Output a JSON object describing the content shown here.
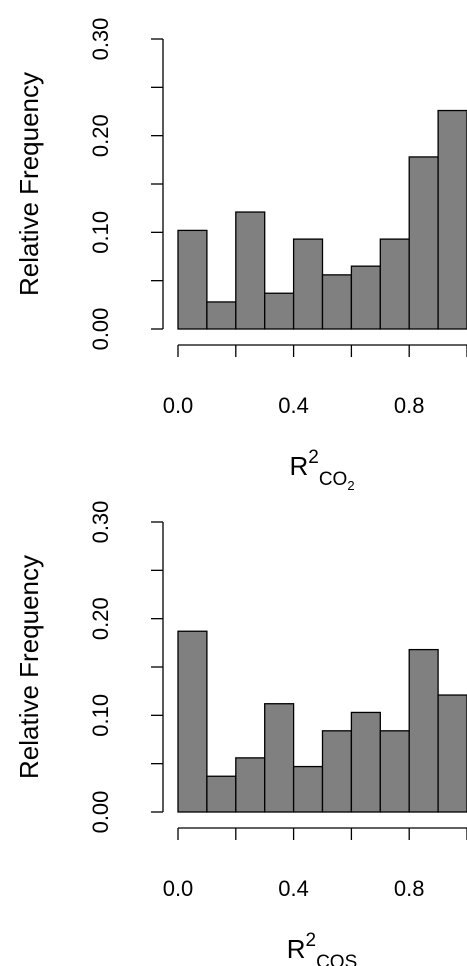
{
  "chart_data": [
    {
      "type": "histogram",
      "ylabel": "Relative Frequency",
      "xlabel": {
        "main": "R",
        "sup": "2",
        "sub": "CO",
        "sub_sub": "2"
      },
      "bins": [
        0,
        0.1,
        0.2,
        0.3,
        0.4,
        0.5,
        0.6,
        0.7,
        0.8,
        0.9,
        1.0
      ],
      "values": [
        0.102,
        0.028,
        0.121,
        0.037,
        0.093,
        0.056,
        0.065,
        0.093,
        0.178,
        0.226
      ],
      "color": "#808080",
      "xlim": [
        0,
        1
      ],
      "ylim": [
        0,
        0.3
      ],
      "xticks": [
        {
          "value": 0,
          "label": "0.0"
        },
        {
          "value": 0.2,
          "label": null
        },
        {
          "value": 0.4,
          "label": "0.4"
        },
        {
          "value": 0.6,
          "label": null
        },
        {
          "value": 0.8,
          "label": "0.8"
        },
        {
          "value": 1.0,
          "label": null
        }
      ],
      "yticks": [
        {
          "value": 0,
          "label": "0.00"
        },
        {
          "value": 0.05,
          "label": null
        },
        {
          "value": 0.1,
          "label": "0.10"
        },
        {
          "value": 0.15,
          "label": null
        },
        {
          "value": 0.2,
          "label": "0.20"
        },
        {
          "value": 0.25,
          "label": null
        },
        {
          "value": 0.3,
          "label": "0.30"
        }
      ]
    },
    {
      "type": "histogram",
      "ylabel": "Relative Frequency",
      "xlabel": {
        "main": "R",
        "sup": "2",
        "sub": "COS"
      },
      "bins": [
        0,
        0.1,
        0.2,
        0.3,
        0.4,
        0.5,
        0.6,
        0.7,
        0.8,
        0.9,
        1.0
      ],
      "values": [
        0.187,
        0.037,
        0.056,
        0.112,
        0.047,
        0.084,
        0.103,
        0.084,
        0.168,
        0.121
      ],
      "color": "#808080",
      "xlim": [
        0,
        1
      ],
      "ylim": [
        0,
        0.3
      ],
      "xticks": [
        {
          "value": 0,
          "label": "0.0"
        },
        {
          "value": 0.2,
          "label": null
        },
        {
          "value": 0.4,
          "label": "0.4"
        },
        {
          "value": 0.6,
          "label": null
        },
        {
          "value": 0.8,
          "label": "0.8"
        },
        {
          "value": 1.0,
          "label": null
        }
      ],
      "yticks": [
        {
          "value": 0,
          "label": "0.00"
        },
        {
          "value": 0.05,
          "label": null
        },
        {
          "value": 0.1,
          "label": "0.10"
        },
        {
          "value": 0.15,
          "label": null
        },
        {
          "value": 0.2,
          "label": "0.20"
        },
        {
          "value": 0.25,
          "label": null
        },
        {
          "value": 0.3,
          "label": "0.30"
        }
      ]
    }
  ]
}
